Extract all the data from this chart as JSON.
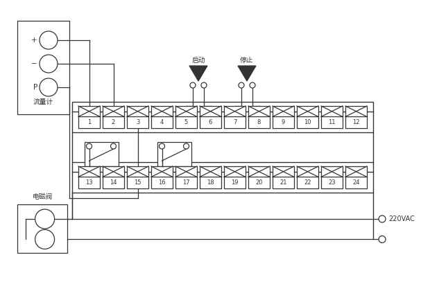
{
  "bg_color": "#ffffff",
  "line_color": "#333333",
  "terminal_row1": [
    1,
    2,
    3,
    4,
    5,
    6,
    7,
    8,
    9,
    10,
    11,
    12
  ],
  "terminal_row2": [
    13,
    14,
    15,
    16,
    17,
    18,
    19,
    20,
    21,
    22,
    23,
    24
  ],
  "start_label": "启动",
  "stop_label": "停止",
  "flow_label": "流量计",
  "solenoid_label": "电磁阀",
  "voltage_label": "220VAC",
  "lw": 0.9
}
